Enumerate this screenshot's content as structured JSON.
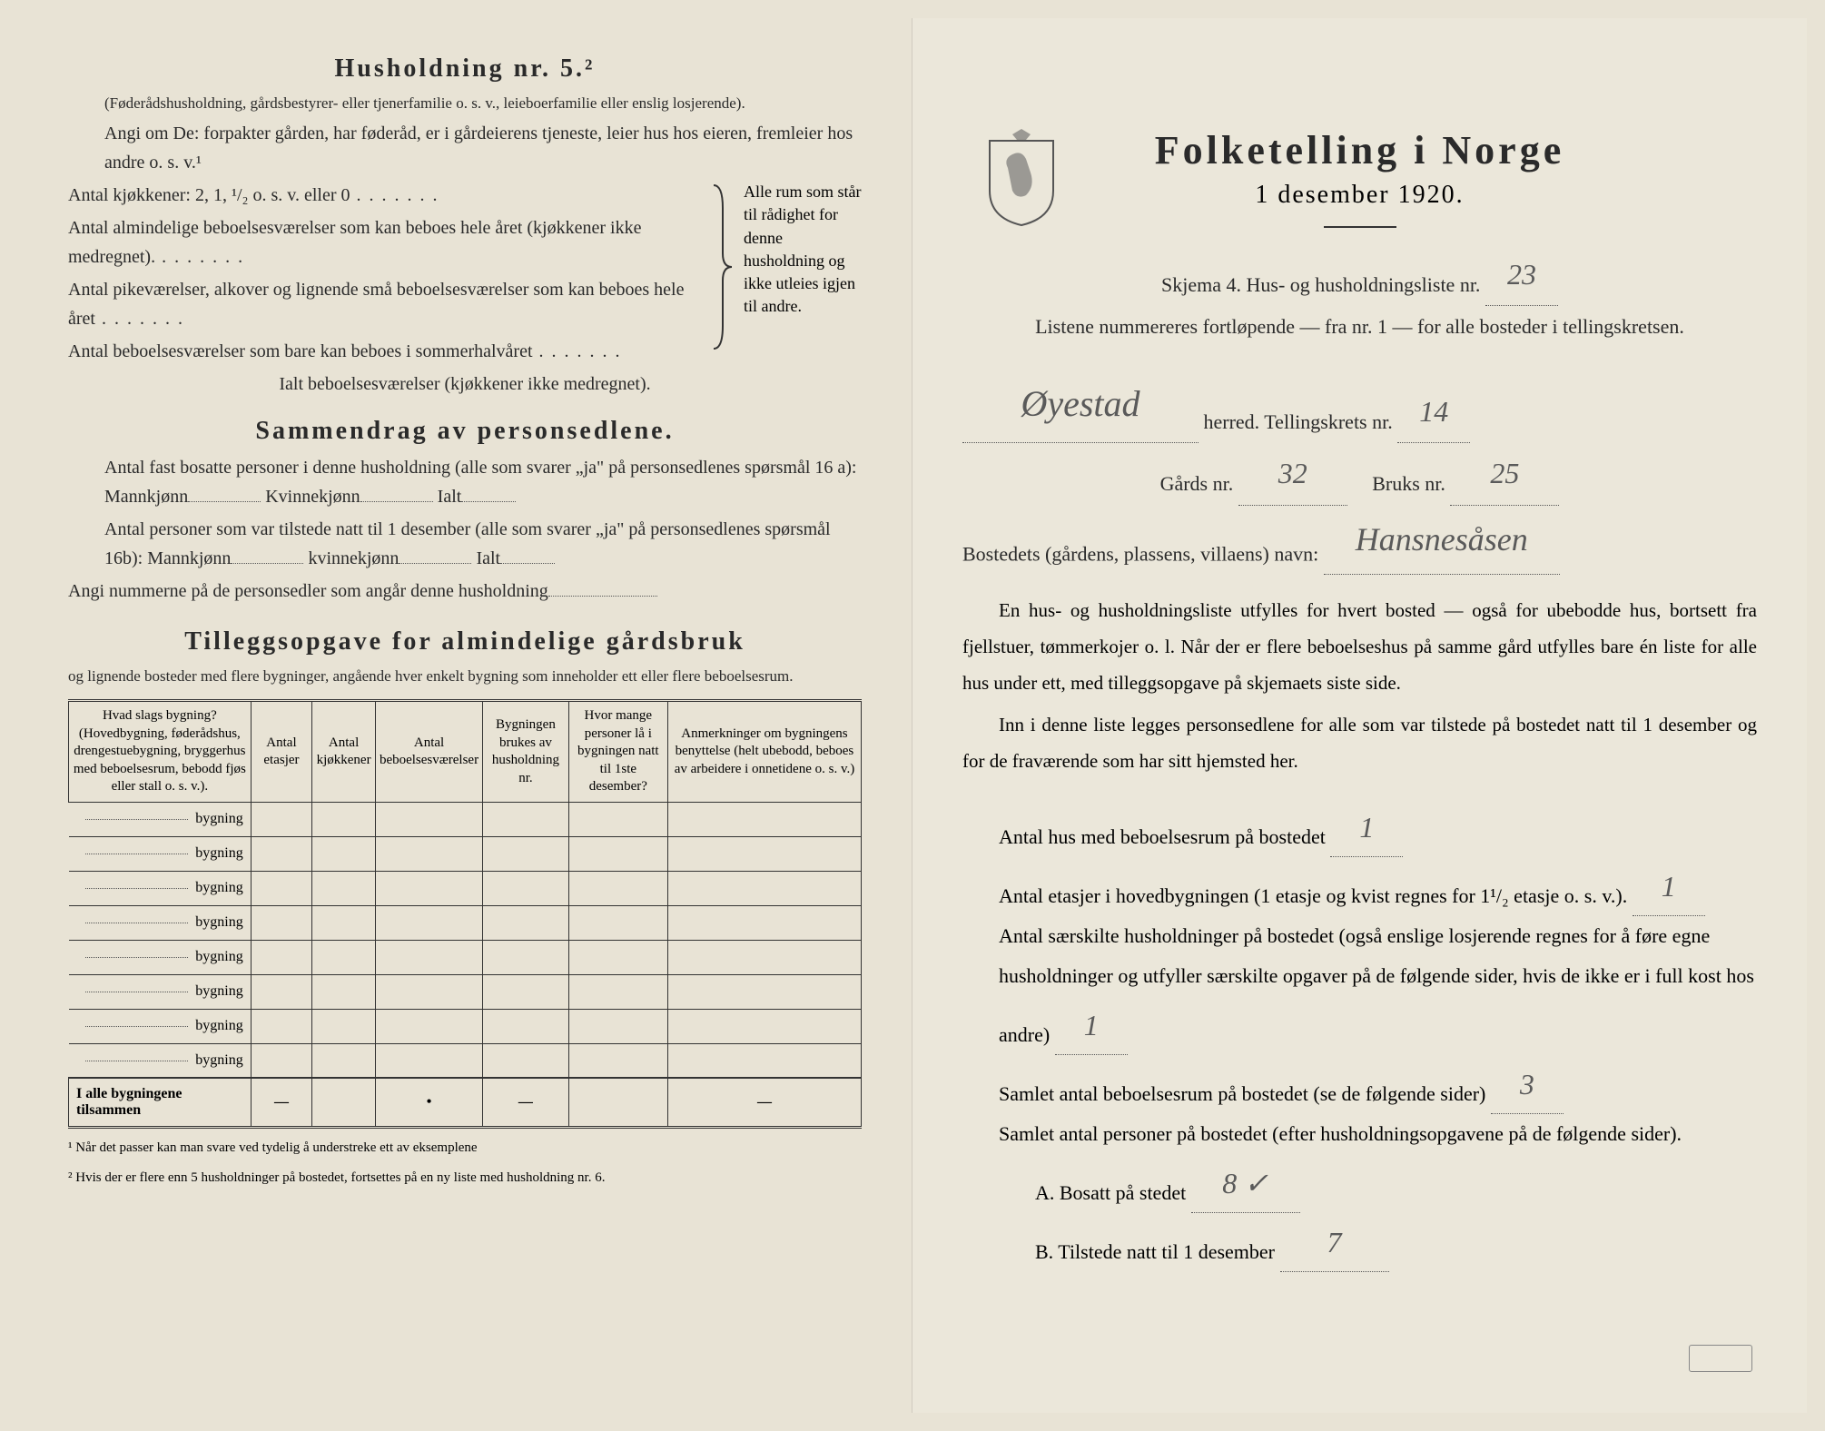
{
  "leftPage": {
    "section1": {
      "title": "Husholdning nr. 5.²",
      "intro": "(Føderådshusholdning, gårdsbestyrer- eller tjenerfamilie o. s. v., leieboerfamilie eller enslig losjerende).",
      "line1": "Angi om De: forpakter gården, har føderåd, er i gårdeierens tjeneste, leier hus hos eieren, fremleier hos andre o. s. v.¹",
      "kitchens": "Antal kjøkkener: 2, 1, ¹/₂ o. s. v. eller 0",
      "braceItems": [
        "Antal almindelige beboelsesværelser som kan beboes hele året (kjøkkener ikke medregnet).",
        "Antal pikeværelser, alkover og lignende små beboelsesværelser som kan beboes hele året",
        "Antal beboelsesværelser som bare kan beboes i sommerhalvåret"
      ],
      "braceRight": "Alle rum som står til rådighet for denne husholdning og ikke utleies igjen til andre.",
      "totalRooms": "Ialt beboelsesværelser (kjøkkener ikke medregnet)."
    },
    "section2": {
      "title": "Sammendrag av personsedlene.",
      "line1": "Antal fast bosatte personer i denne husholdning (alle som svarer „ja\" på personsedlenes spørsmål 16 a): Mannkjønn",
      "kvinne": "Kvinnekjønn",
      "ialt": "Ialt",
      "line2": "Antal personer som var tilstede natt til 1 desember (alle som svarer „ja\" på personsedlenes spørsmål 16b): Mannkjønn",
      "kvinne2": "kvinnekjønn",
      "ialt2": "Ialt",
      "line3": "Angi nummerne på de personsedler som angår denne husholdning"
    },
    "section3": {
      "title": "Tilleggsopgave for almindelige gårdsbruk",
      "subtitle": "og lignende bosteder med flere bygninger, angående hver enkelt bygning som inneholder ett eller flere beboelsesrum.",
      "headers": [
        "Hvad slags bygning?\n(Hovedbygning, føderådshus, drengestuebygning, bryggerhus med beboelsesrum, bebodd fjøs eller stall o. s. v.).",
        "Antal etasjer",
        "Antal kjøkkener",
        "Antal beboelsesværelser",
        "Bygningen brukes av husholdning nr.",
        "Hvor mange personer lå i bygningen natt til 1ste desember?",
        "Anmerkninger om bygningens benyttelse (helt ubebodd, beboes av arbeidere i onnetidene o. s. v.)"
      ],
      "rowLabel": "bygning",
      "totalLabel": "I alle bygningene tilsammen",
      "rowCount": 8
    },
    "footnotes": [
      "¹ Når det passer kan man svare ved tydelig å understreke ett av eksemplene",
      "² Hvis der er flere enn 5 husholdninger på bostedet, fortsettes på en ny liste med husholdning nr. 6."
    ]
  },
  "rightPage": {
    "title": "Folketelling i Norge",
    "subtitle": "1 desember 1920.",
    "formLine": "Skjema 4.   Hus- og husholdningsliste nr.",
    "listNr": "23",
    "instruction": "Listene nummereres fortløpende — fra nr. 1 — for alle bosteder i tellingskretsen.",
    "herred": "Øyestad",
    "herredLabel": "herred.   Tellingskrets nr.",
    "kretsNr": "14",
    "gardsLabel": "Gårds nr.",
    "gardsNr": "32",
    "bruksLabel": "Bruks nr.",
    "bruksNr": "25",
    "bostedLabel": "Bostedets (gårdens, plassens, villaens) navn:",
    "bostedValue": "Hansnesåsen",
    "para1": "En hus- og husholdningsliste utfylles for hvert bosted — også for ubebodde hus, bortsett fra fjellstuer, tømmerkojer o. l. Når der er flere beboelseshus på samme gård utfylles bare én liste for alle hus under ett, med tilleggsopgave på skjemaets siste side.",
    "para2": "Inn i denne liste legges personsedlene for alle som var tilstede på bostedet natt til 1 desember og for de fraværende som har sitt hjemsted her.",
    "q1": "Antal hus med beboelsesrum på bostedet",
    "q1val": "1",
    "q2": "Antal etasjer i hovedbygningen (1 etasje og kvist regnes for 1¹/₂ etasje o. s. v.).",
    "q2val": "1",
    "q3a": "Antal særskilte husholdninger på bostedet (også enslige losjerende regnes for å føre egne husholdninger og utfyller særskilte opgaver på de følgende sider, hvis de ikke er i full kost hos andre)",
    "q3val": "1",
    "q4": "Samlet antal beboelsesrum på bostedet (se de følgende sider)",
    "q4val": "3",
    "q5": "Samlet antal personer på bostedet (efter husholdningsopgavene på de følgende sider).",
    "qA": "A.  Bosatt på stedet",
    "qAval": "8 ✓",
    "qB": "B.  Tilstede natt til 1 desember",
    "qBval": "7"
  },
  "colors": {
    "paper": "#e8e3d5",
    "paperRight": "#ebe7da",
    "text": "#2a2a2a",
    "handwriting": "#5a5a5a"
  }
}
